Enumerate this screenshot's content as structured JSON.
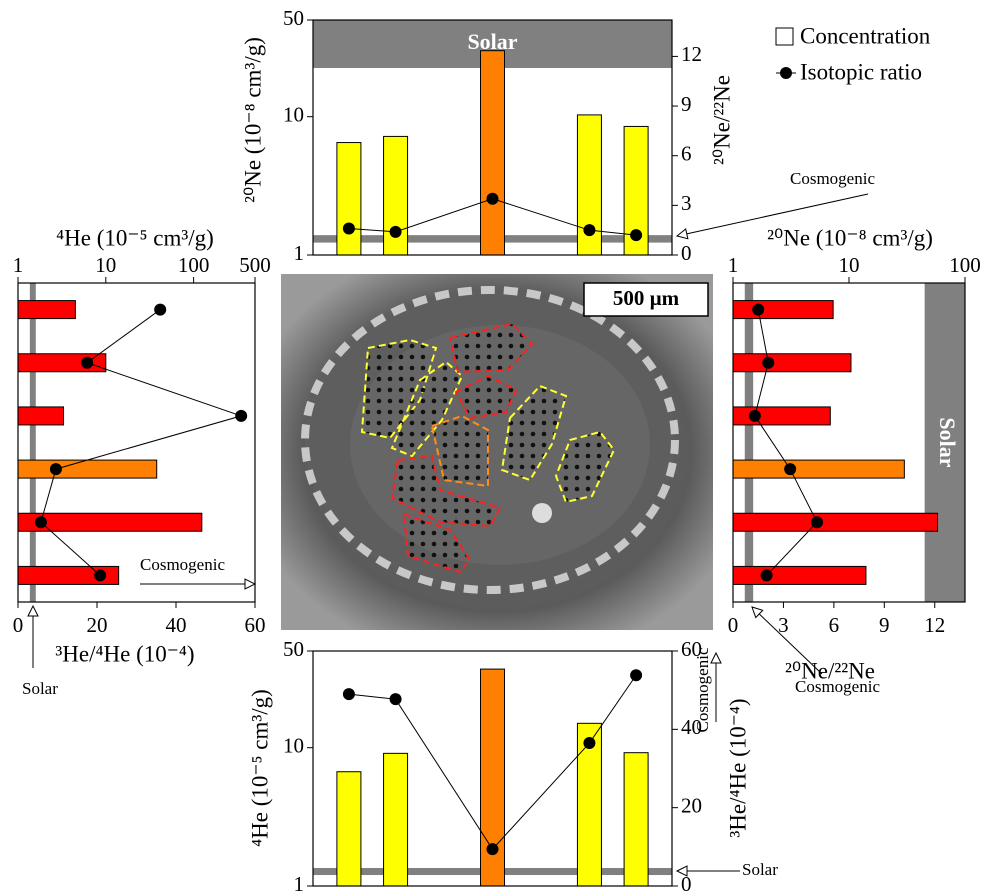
{
  "legend": "upper right",
  "image": {
    "scale_label": "500 µm"
  },
  "chart_data": [
    {
      "type": "bar",
      "orientation": "vertical",
      "y_label": "²⁰Ne (10⁻⁸ cm³/g)",
      "y2_label": "²⁰Ne/²²Ne",
      "ylim": [
        1,
        50
      ],
      "log_y": true,
      "yticks": [
        1,
        10,
        50
      ],
      "y2lim": [
        0,
        14.2
      ],
      "y2ticks": [
        0,
        3,
        6,
        9,
        12
      ],
      "categories": [
        null,
        null,
        null,
        null,
        null
      ],
      "series": [
        {
          "name": "Concentration",
          "colors": [
            "#ffff00",
            "#ffff00",
            "#ff8000",
            "#ffff00",
            "#ffff00"
          ],
          "values": [
            6.5,
            7.2,
            30,
            10.3,
            8.5
          ]
        },
        {
          "name": "Isotopic ratio",
          "color": "#000000",
          "axis": "y2",
          "values": [
            1.6,
            1.4,
            3.4,
            1.5,
            1.2
          ]
        }
      ],
      "bands": [
        {
          "label": "Solar",
          "axis": "y2",
          "range": [
            11.3,
            14.2
          ],
          "color": "#808080"
        },
        {
          "label": "Cosmogenic",
          "axis": "y2",
          "range": [
            0.75,
            1.2
          ],
          "color": "#808080"
        }
      ]
    },
    {
      "type": "bar",
      "orientation": "horizontal",
      "x_label": "⁴He (10⁻⁵ cm³/g)",
      "x2_label": "³He/⁴He (10⁻⁴)",
      "xlim": [
        1,
        500
      ],
      "log_x": true,
      "xticks": [
        1,
        10,
        100,
        500
      ],
      "x2lim": [
        0,
        60
      ],
      "x2ticks": [
        0,
        20,
        40,
        60
      ],
      "categories": [
        null,
        null,
        null,
        null,
        null,
        null
      ],
      "series": [
        {
          "name": "Concentration",
          "colors": [
            "#ff0000",
            "#ff0000",
            "#ff0000",
            "#ff8000",
            "#ff0000",
            "#ff0000"
          ],
          "values": [
            4.5,
            10,
            3.3,
            38,
            124,
            14
          ]
        },
        {
          "name": "Isotopic ratio",
          "color": "#000000",
          "axis": "x2",
          "values": [
            36,
            17.5,
            56.5,
            9.6,
            5.8,
            20.8
          ]
        }
      ],
      "bands": [
        {
          "label": "Solar",
          "axis": "x2",
          "range": [
            3,
            4.5
          ],
          "color": "#808080"
        },
        {
          "label": "Cosmogenic",
          "axis": "x2",
          "value": 60
        }
      ]
    },
    {
      "type": "bar",
      "orientation": "horizontal",
      "x_label": "²⁰Ne (10⁻⁸ cm³/g)",
      "x2_label": "²⁰Ne/²²Ne",
      "xlim": [
        1,
        100
      ],
      "log_x": true,
      "xticks": [
        1,
        10,
        100
      ],
      "x2lim": [
        0,
        13.8
      ],
      "x2ticks": [
        0,
        3,
        6,
        9,
        12
      ],
      "categories": [
        null,
        null,
        null,
        null,
        null,
        null
      ],
      "series": [
        {
          "name": "Concentration",
          "colors": [
            "#ff0000",
            "#ff0000",
            "#ff0000",
            "#ff8000",
            "#ff0000",
            "#ff0000"
          ],
          "values": [
            7.3,
            10.4,
            6.9,
            30,
            58,
            14
          ]
        },
        {
          "name": "Isotopic ratio",
          "color": "#000000",
          "axis": "x2",
          "values": [
            1.5,
            2.1,
            1.3,
            3.4,
            5.0,
            2.0
          ]
        }
      ],
      "bands": [
        {
          "label": "Solar",
          "axis": "x2",
          "range": [
            11.4,
            13.8
          ],
          "color": "#808080"
        },
        {
          "label": "Cosmogenic",
          "axis": "x2",
          "range": [
            0.7,
            1.2
          ],
          "color": "#808080"
        }
      ]
    },
    {
      "type": "bar",
      "orientation": "vertical",
      "y_label": "⁴He (10⁻⁵ cm³/g)",
      "y2_label": "³He/⁴He (10⁻⁴)",
      "ylim": [
        1,
        50
      ],
      "log_y": true,
      "yticks": [
        1,
        10,
        50
      ],
      "y2lim": [
        0,
        60
      ],
      "y2ticks": [
        0,
        20,
        40,
        60
      ],
      "categories": [
        null,
        null,
        null,
        null,
        null
      ],
      "series": [
        {
          "name": "Concentration",
          "colors": [
            "#ffff00",
            "#ffff00",
            "#ff8000",
            "#ffff00",
            "#ffff00"
          ],
          "values": [
            6.7,
            9.1,
            37,
            15,
            9.2
          ]
        },
        {
          "name": "Isotopic ratio",
          "color": "#000000",
          "axis": "y2",
          "values": [
            49,
            47.7,
            9.4,
            36.5,
            53.8
          ]
        }
      ],
      "bands": [
        {
          "label": "Cosmogenic",
          "axis": "y2",
          "value": 60
        },
        {
          "label": "Solar",
          "axis": "y2",
          "range": [
            2.8,
            4.6
          ],
          "color": "#808080"
        }
      ]
    }
  ]
}
